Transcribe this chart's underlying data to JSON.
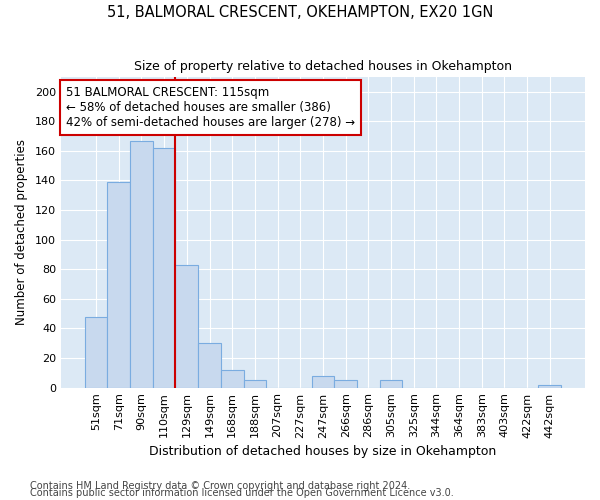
{
  "title1": "51, BALMORAL CRESCENT, OKEHAMPTON, EX20 1GN",
  "title2": "Size of property relative to detached houses in Okehampton",
  "xlabel": "Distribution of detached houses by size in Okehampton",
  "ylabel": "Number of detached properties",
  "categories": [
    "51sqm",
    "71sqm",
    "90sqm",
    "110sqm",
    "129sqm",
    "149sqm",
    "168sqm",
    "188sqm",
    "207sqm",
    "227sqm",
    "247sqm",
    "266sqm",
    "286sqm",
    "305sqm",
    "325sqm",
    "344sqm",
    "364sqm",
    "383sqm",
    "403sqm",
    "422sqm",
    "442sqm"
  ],
  "values": [
    48,
    139,
    167,
    162,
    83,
    30,
    12,
    5,
    0,
    0,
    8,
    5,
    0,
    5,
    0,
    0,
    0,
    0,
    0,
    0,
    2
  ],
  "bar_color": "#c8d9ee",
  "bar_edgecolor": "#7aace0",
  "plot_bg_color": "#dce9f5",
  "grid_color": "#ffffff",
  "fig_bg_color": "#ffffff",
  "vline_color": "#cc0000",
  "vline_x_index": 3.5,
  "annotation_text": "51 BALMORAL CRESCENT: 115sqm\n← 58% of detached houses are smaller (386)\n42% of semi-detached houses are larger (278) →",
  "annotation_box_color": "#ffffff",
  "annotation_box_edgecolor": "#cc0000",
  "ylim": [
    0,
    210
  ],
  "yticks": [
    0,
    20,
    40,
    60,
    80,
    100,
    120,
    140,
    160,
    180,
    200
  ],
  "footnote1": "Contains HM Land Registry data © Crown copyright and database right 2024.",
  "footnote2": "Contains public sector information licensed under the Open Government Licence v3.0.",
  "title1_fontsize": 10.5,
  "title2_fontsize": 9,
  "xlabel_fontsize": 9,
  "ylabel_fontsize": 8.5,
  "tick_fontsize": 8,
  "annotation_fontsize": 8.5,
  "footnote_fontsize": 7
}
